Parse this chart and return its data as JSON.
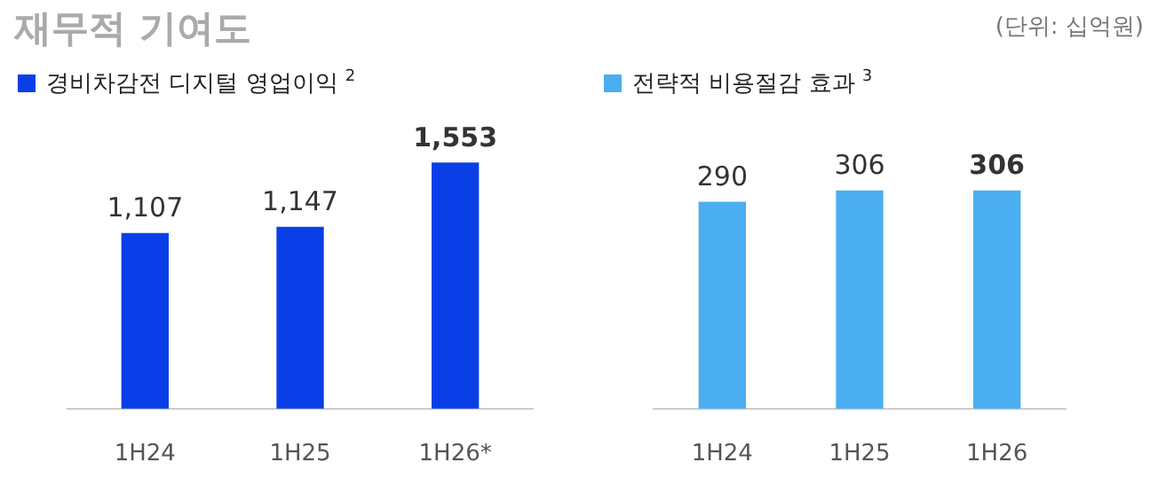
{
  "chart_data": [
    {
      "type": "bar",
      "title": "재무적 기여도",
      "annotations": [
        "(단위: 십억원)"
      ],
      "categories": [
        "1H24",
        "1H25",
        "1H26*"
      ],
      "series": [
        {
          "name": "경비차감전 디지털 영업이익 $^{2}$",
          "color": "#0a3fe8",
          "values": [
            1107,
            1147,
            1553
          ],
          "value_labels": [
            "1,107",
            "1,147",
            "1,553"
          ]
        }
      ],
      "legend": "top left",
      "grid": false,
      "tick_labels": "x"
    },
    {
      "type": "bar",
      "categories": [
        "1H24",
        "1H25",
        "1H26"
      ],
      "series": [
        {
          "name": "전략적 비용절감 효과 $^{3}$",
          "color": "#4aaef0",
          "values": [
            290,
            306,
            306
          ]
        }
      ],
      "data_labels": true,
      "legend": "top left",
      "grid": false,
      "tick_labels": "x"
    }
  ]
}
